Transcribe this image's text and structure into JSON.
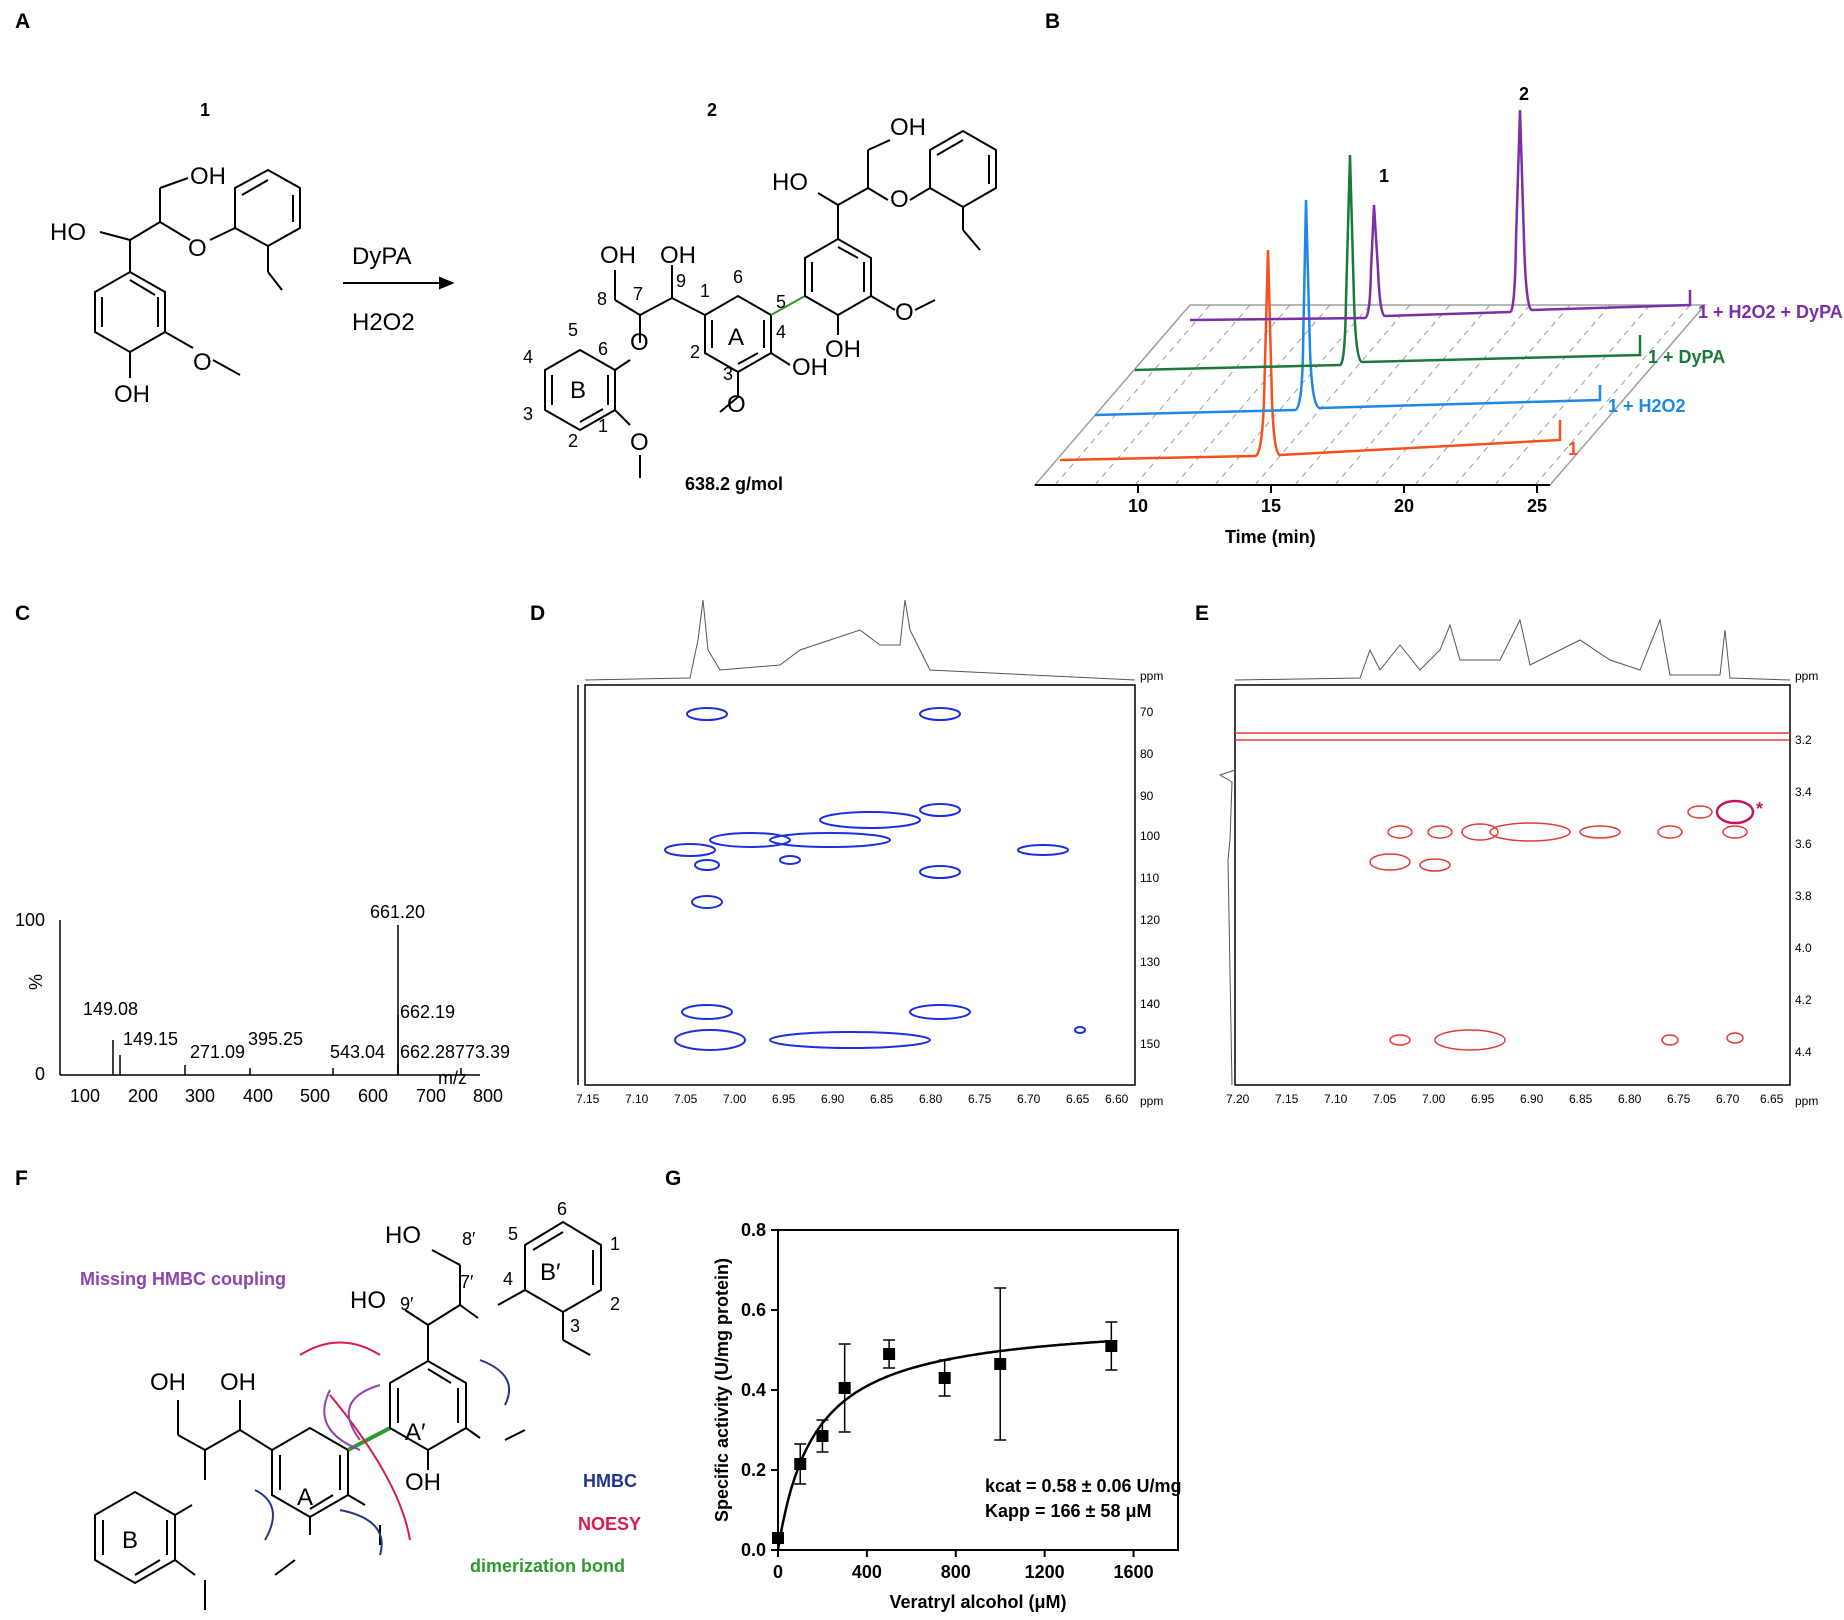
{
  "panel_labels": {
    "A": "A",
    "B": "B",
    "C": "C",
    "D": "D",
    "E": "E",
    "F": "F",
    "G": "G"
  },
  "colors": {
    "trace_1": "#f4511e",
    "trace_h2o2": "#1e88e5",
    "trace_dypa": "#1b7a3a",
    "trace_full": "#7b2fa6",
    "hmbc": "#27348b",
    "noesy": "#d81b4a",
    "missing_hmbc": "#8e44ad",
    "dimer_bond": "#2e9a2e",
    "contour_blue": "#1c2ee0",
    "contour_red": "#e53935"
  },
  "panel_a": {
    "compound1_label": "1",
    "compound2_label": "2",
    "reagent_top": "DyPA",
    "reagent_bottom": "H2O2",
    "mw": "638.2 g/mol",
    "c1_oh_top": "OH",
    "c1_ho": "HO",
    "c1_oh_bottom": "OH",
    "c2_oh_a": "OH",
    "c2_oh_b": "OH",
    "c2_ho": "HO",
    "c2_oh_c": "OH",
    "c2_oh_d": "OH",
    "c2_oh_e": "OH",
    "c2_oh_f": "OH",
    "ring_a": "A",
    "ring_b": "B",
    "atom_nums": {
      "n8": "8",
      "n7": "7",
      "n9": "9",
      "n1a": "1",
      "n6a": "6",
      "n5a": "5",
      "n4a": "4",
      "n3a": "3",
      "n2a": "2",
      "n5b": "5",
      "n4b": "4",
      "n3b": "3",
      "n2b": "2",
      "n6b": "6",
      "n1b": "1"
    }
  },
  "panel_b": {
    "peak_label_1": "1",
    "peak_label_2": "2",
    "trace_labels": [
      "1",
      "1 + H2O2",
      "1 + DyPA",
      "1 + H2O2 + DyPA"
    ],
    "xlabel": "Time (min)",
    "xticks": [
      "10",
      "15",
      "20",
      "25"
    ]
  },
  "panel_c": {
    "yticks": [
      "100",
      "0"
    ],
    "ylabel": "%",
    "xlabel": "m/z",
    "xticks": [
      "100",
      "200",
      "300",
      "400",
      "500",
      "600",
      "700",
      "800"
    ],
    "peak_labels": [
      "661.20",
      "662.19",
      "149.08",
      "149.15",
      "271.09",
      "395.25",
      "543.04",
      "662.28",
      "773.39"
    ]
  },
  "panel_d": {
    "ppm_top": "ppm",
    "ppm_right": "ppm",
    "yticks": [
      "70",
      "80",
      "90",
      "100",
      "110",
      "120",
      "130",
      "140",
      "150"
    ],
    "xticks": [
      "7.15",
      "7.10",
      "7.05",
      "7.00",
      "6.95",
      "6.90",
      "6.85",
      "6.80",
      "6.75",
      "6.70",
      "6.65",
      "6.60"
    ]
  },
  "panel_e": {
    "ppm_top": "ppm",
    "ppm_right": "ppm",
    "star": "*",
    "yticks": [
      "3.2",
      "3.4",
      "3.6",
      "3.8",
      "4.0",
      "4.2",
      "4.4"
    ],
    "xticks": [
      "7.20",
      "7.15",
      "7.10",
      "7.05",
      "7.00",
      "6.95",
      "6.90",
      "6.85",
      "6.80",
      "6.75",
      "6.70",
      "6.65"
    ]
  },
  "panel_f": {
    "missing_label": "Missing HMBC coupling",
    "legend_hmbc": "HMBC",
    "legend_noesy": "NOESY",
    "legend_dimer": "dimerization bond",
    "ring_a": "A",
    "ring_a2": "A′",
    "ring_b": "B",
    "ring_b2": "B′",
    "ho_top": "HO",
    "oh_9": "OH",
    "oh_8": "OH",
    "ho_9p": "HO",
    "oh_4": "OH",
    "n8p": "8′",
    "n7p": "7′",
    "n9p": "9′",
    "n4": "4",
    "n3": "3",
    "n2": "2",
    "n1": "1",
    "n5": "5",
    "n6": "6"
  },
  "chart_data": {
    "type": "scatter",
    "x": [
      0,
      100,
      200,
      300,
      500,
      750,
      1000,
      1500
    ],
    "y": [
      0.03,
      0.215,
      0.285,
      0.405,
      0.49,
      0.43,
      0.465,
      0.51
    ],
    "yerr": [
      0.01,
      0.05,
      0.04,
      0.11,
      0.035,
      0.045,
      0.19,
      0.06
    ],
    "fit": {
      "model": "Michaelis-Menten",
      "vmax": 0.58,
      "km": 166
    },
    "xlabel": "Veratryl alcohol (μM)",
    "ylabel": "Specific activity (U/mg protein)",
    "xlim": [
      0,
      1800
    ],
    "ylim": [
      0,
      0.8
    ],
    "xticks": [
      "0",
      "400",
      "800",
      "1200",
      "1600"
    ],
    "yticks": [
      "0.0",
      "0.2",
      "0.4",
      "0.6",
      "0.8"
    ],
    "annotation_kcat": "kcat = 0.58 ± 0.06 U/mg",
    "annotation_kapp": "Kapp = 166 ± 58 μM"
  }
}
